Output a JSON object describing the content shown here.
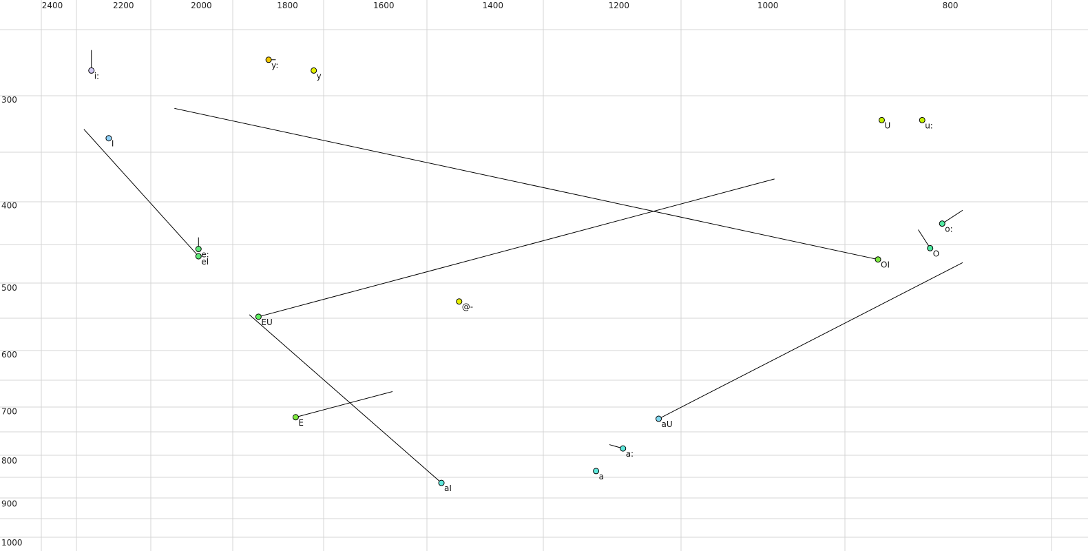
{
  "chart_data": {
    "type": "scatter",
    "title": "",
    "xlabel": "",
    "ylabel": "",
    "x_scale": "log",
    "y_scale": "log",
    "x_reversed": true,
    "xlim": [
      2400,
      800
    ],
    "ylim": [
      300,
      1000
    ],
    "grid": true,
    "x_ticks": [
      "2400",
      "2200",
      "2000",
      "1800",
      "1600",
      "1400",
      "1200",
      "1000",
      "800"
    ],
    "y_ticks": [
      "300",
      "400",
      "500",
      "600",
      "700",
      "800",
      "900",
      "1000"
    ],
    "points": [
      {
        "label": "i:",
        "f2": 2288,
        "f1": 277,
        "color": "#d4ccf4",
        "to": {
          "f2": 2288,
          "f1": 262
        }
      },
      {
        "label": "y:",
        "f2": 1842,
        "f1": 269,
        "color": "#f2c800",
        "to": {
          "f2": 1826,
          "f1": 269
        }
      },
      {
        "label": "y",
        "f2": 1743,
        "f1": 277,
        "color": "#e4f200"
      },
      {
        "label": "I",
        "f2": 2240,
        "f1": 333,
        "color": "#90d2fa"
      },
      {
        "label": "e:",
        "f2": 2007,
        "f1": 450,
        "color": "#5ee878",
        "to": {
          "f2": 2007,
          "f1": 436
        }
      },
      {
        "label": "eI",
        "f2": 2007,
        "f1": 459,
        "color": "#5ee878",
        "to": {
          "f2": 2309,
          "f1": 325
        }
      },
      {
        "label": "EU",
        "f2": 1865,
        "f1": 541,
        "color": "#5ef060",
        "to": {
          "f2": 992,
          "f1": 372
        }
      },
      {
        "label": "@-",
        "f2": 1459,
        "f1": 519,
        "color": "#e8f000"
      },
      {
        "label": "E",
        "f2": 1782,
        "f1": 711,
        "color": "#80ec40",
        "to": {
          "f2": 1583,
          "f1": 663
        }
      },
      {
        "label": "aI",
        "f2": 1491,
        "f1": 850,
        "color": "#5ee8dc",
        "to": {
          "f2": 1886,
          "f1": 538
        }
      },
      {
        "label": "a",
        "f2": 1234,
        "f1": 823,
        "color": "#5ee8dc"
      },
      {
        "label": "a:",
        "f2": 1194,
        "f1": 774,
        "color": "#5ee8dc",
        "to": {
          "f2": 1214,
          "f1": 766
        }
      },
      {
        "label": "aU",
        "f2": 1143,
        "f1": 714,
        "color": "#80d8f0",
        "to": {
          "f2": 788,
          "f1": 467
        }
      },
      {
        "label": "OI",
        "f2": 874,
        "f1": 463,
        "color": "#7ce840",
        "to": {
          "f2": 2067,
          "f1": 307
        }
      },
      {
        "label": "O",
        "f2": 820,
        "f1": 449,
        "color": "#50e8a0",
        "to": {
          "f2": 832,
          "f1": 427
        }
      },
      {
        "label": "o:",
        "f2": 808,
        "f1": 420,
        "color": "#50e8a0",
        "to": {
          "f2": 788,
          "f1": 405
        }
      },
      {
        "label": "U",
        "f2": 870,
        "f1": 317,
        "color": "#c4f000"
      },
      {
        "label": "u:",
        "f2": 828,
        "f1": 317,
        "color": "#c4f000"
      }
    ]
  }
}
